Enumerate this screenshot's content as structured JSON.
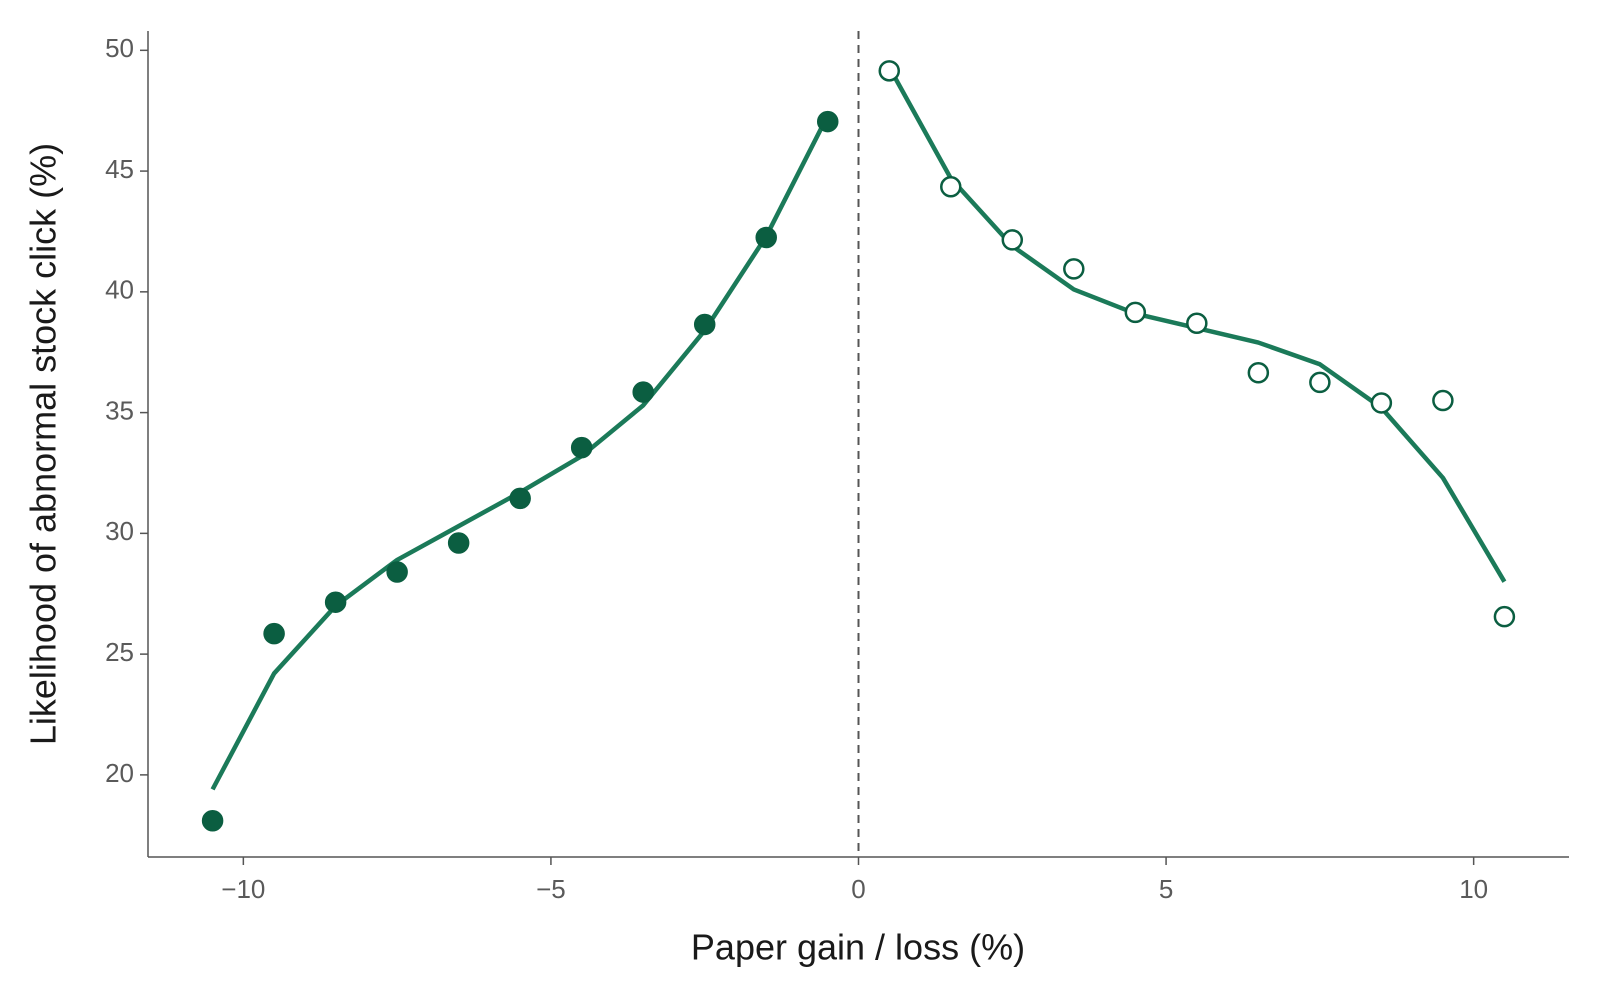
{
  "chart_data": {
    "type": "scatter",
    "xlabel": "Paper gain / loss (%)",
    "ylabel": "Likelihood of abnormal stock click (%)",
    "xlim": [
      -11.55,
      11.55
    ],
    "ylim": [
      16.6,
      50.8
    ],
    "xticks": [
      {
        "value": -10,
        "label": "−10"
      },
      {
        "value": -5,
        "label": "−5"
      },
      0,
      5,
      10
    ],
    "yticks": [
      20,
      25,
      30,
      35,
      40,
      45,
      50
    ],
    "vline": 0,
    "series": [
      {
        "color": "#0b5e41",
        "marker": "filled",
        "x": [
          -10.5,
          -9.5,
          -8.5,
          -7.5,
          -6.5,
          -5.5,
          -4.5,
          -3.5,
          -2.5,
          -1.5,
          -0.5
        ],
        "values": [
          18.1,
          25.85,
          27.15,
          28.4,
          29.6,
          31.45,
          33.55,
          35.85,
          38.65,
          42.25,
          47.05
        ]
      },
      {
        "color": "#0b5e41",
        "marker": "open",
        "x": [
          0.5,
          1.5,
          2.5,
          3.5,
          4.5,
          5.5,
          6.5,
          7.5,
          8.5,
          9.5,
          10.5
        ],
        "values": [
          49.15,
          44.35,
          42.15,
          40.95,
          39.15,
          38.7,
          36.65,
          36.25,
          35.4,
          35.5,
          26.55
        ]
      }
    ],
    "fits": [
      {
        "color": "#1b7a59",
        "x": [
          -10.5,
          -9.5,
          -8.5,
          -7.5,
          -6.5,
          -5.5,
          -4.5,
          -3.5,
          -2.5,
          -1.5,
          -0.5
        ],
        "values": [
          19.4,
          24.2,
          27.0,
          28.9,
          30.3,
          31.7,
          33.2,
          35.3,
          38.4,
          42.3,
          47.3
        ]
      },
      {
        "color": "#1b7a59",
        "x": [
          0.5,
          1.5,
          2.5,
          3.5,
          4.5,
          5.5,
          6.5,
          7.5,
          8.5,
          9.5,
          10.5
        ],
        "values": [
          49.3,
          44.7,
          41.9,
          40.1,
          39.1,
          38.5,
          37.9,
          37.0,
          35.2,
          32.3,
          28.0
        ]
      }
    ]
  }
}
